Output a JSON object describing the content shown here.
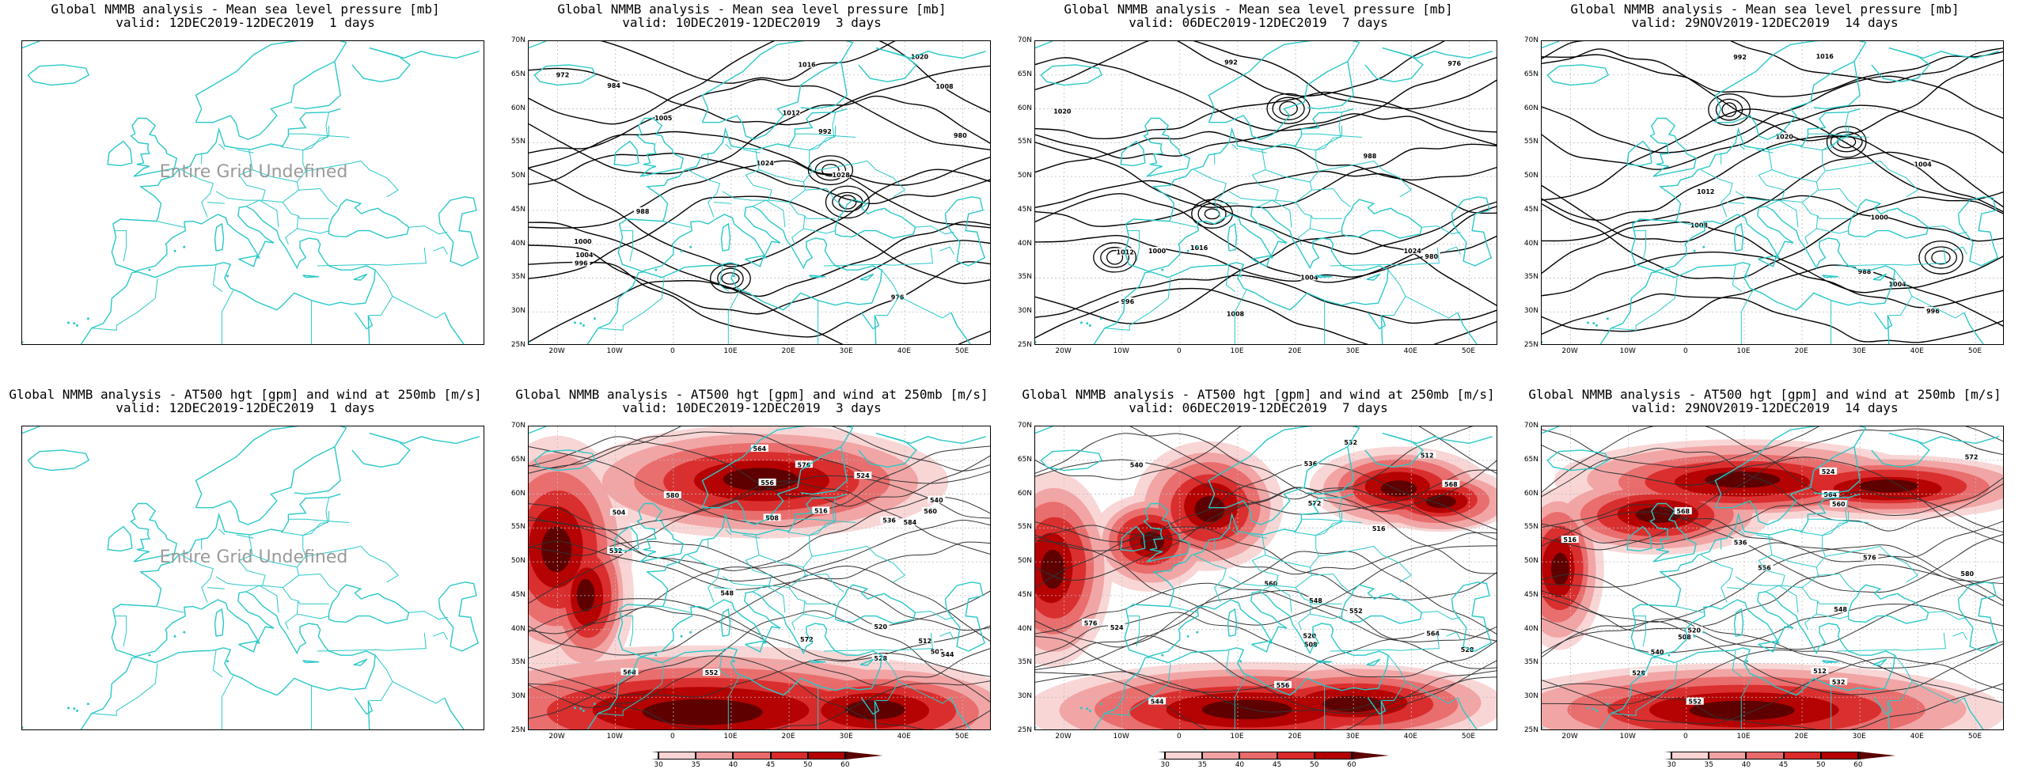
{
  "panels": [
    {
      "row": 0,
      "col": 0,
      "title": "Global NMMB analysis - Mean sea level pressure [mb]",
      "subtitle": "valid: 12DEC2019-12DEC2019  1 days",
      "kind": "mslp",
      "undefined": true
    },
    {
      "row": 0,
      "col": 1,
      "title": "Global NMMB analysis - Mean sea level pressure [mb]",
      "subtitle": "valid: 10DEC2019-12DEC2019  3 days",
      "kind": "mslp",
      "undefined": false,
      "contour_labels": [
        "1000",
        "1004",
        "1008",
        "1012",
        "1016",
        "1020",
        "1024",
        "1028",
        "984",
        "988",
        "992",
        "996",
        "972",
        "976",
        "980",
        "1005"
      ]
    },
    {
      "row": 0,
      "col": 2,
      "title": "Global NMMB analysis - Mean sea level pressure [mb]",
      "subtitle": "valid: 06DEC2019-12DEC2019  7 days",
      "kind": "mslp",
      "undefined": false,
      "contour_labels": [
        "980",
        "988",
        "992",
        "996",
        "1000",
        "1004",
        "1008",
        "1012",
        "1016",
        "1020",
        "1024",
        "976"
      ]
    },
    {
      "row": 0,
      "col": 3,
      "title": "Global NMMB analysis - Mean sea level pressure [mb]",
      "subtitle": "valid: 29NOV2019-12DEC2019  14 days",
      "kind": "mslp",
      "undefined": false,
      "contour_labels": [
        "988",
        "992",
        "996",
        "1000",
        "1004",
        "1008",
        "1012",
        "1016",
        "1020",
        "1004"
      ]
    },
    {
      "row": 1,
      "col": 0,
      "title": "Global NMMB analysis - AT500 hgt [gpm] and wind at 250mb [m/s]",
      "subtitle": "valid: 12DEC2019-12DEC2019  1 days",
      "kind": "z500",
      "undefined": true
    },
    {
      "row": 1,
      "col": 1,
      "title": "Global NMMB analysis - AT500 hgt [gpm] and wind at 250mb [m/s]",
      "subtitle": "valid: 10DEC2019-12DEC2019  3 days",
      "kind": "z500",
      "undefined": false,
      "contour_labels": [
        "500",
        "504",
        "508",
        "512",
        "516",
        "520",
        "524",
        "528",
        "532",
        "536",
        "540",
        "544",
        "548",
        "552",
        "556",
        "560",
        "564",
        "568",
        "572",
        "576",
        "580",
        "584"
      ]
    },
    {
      "row": 1,
      "col": 2,
      "title": "Global NMMB analysis - AT500 hgt [gpm] and wind at 250mb [m/s]",
      "subtitle": "valid: 06DEC2019-12DEC2019  7 days",
      "kind": "z500",
      "undefined": false,
      "contour_labels": [
        "508",
        "512",
        "516",
        "520",
        "524",
        "528",
        "532",
        "536",
        "540",
        "544",
        "548",
        "552",
        "556",
        "560",
        "564",
        "568",
        "572",
        "576"
      ]
    },
    {
      "row": 1,
      "col": 3,
      "title": "Global NMMB analysis - AT500 hgt [gpm] and wind at 250mb [m/s]",
      "subtitle": "valid: 29NOV2019-12DEC2019  14 days",
      "kind": "z500",
      "undefined": false,
      "contour_labels": [
        "508",
        "512",
        "516",
        "520",
        "524",
        "528",
        "532",
        "536",
        "540",
        "548",
        "552",
        "556",
        "560",
        "564",
        "568",
        "572",
        "576",
        "580"
      ]
    }
  ],
  "undefined_text": "Entire Grid Undefined",
  "lat_labels": [
    "70N",
    "65N",
    "60N",
    "55N",
    "50N",
    "45N",
    "40N",
    "35N",
    "30N",
    "25N"
  ],
  "lon_labels": [
    "20W",
    "10W",
    "0",
    "10E",
    "20E",
    "30E",
    "40E",
    "50E"
  ],
  "colorbar": {
    "labels": [
      "30",
      "35",
      "40",
      "45",
      "50",
      "60"
    ],
    "colors": [
      "#ffffff",
      "#f9d4d4",
      "#f1a2a2",
      "#e86a6a",
      "#d92b2b",
      "#b30000",
      "#5a0000"
    ]
  },
  "colors": {
    "coast": "#2bc8c8",
    "contour": "#000000",
    "wind": "#d40000"
  }
}
